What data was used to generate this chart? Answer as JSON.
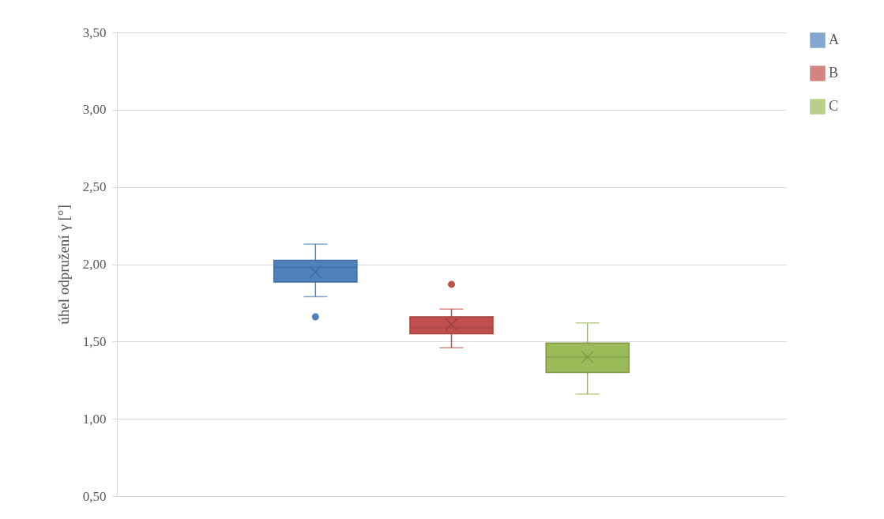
{
  "chart_data": {
    "type": "box",
    "ylabel": "úhel odpružení γ [°]",
    "categories": [
      null
    ],
    "series": [
      {
        "name": "A",
        "color": "#4f81bd",
        "boxes": [
          {
            "low": 1.79,
            "q1": 1.885,
            "median": 1.98,
            "q3": 2.025,
            "high": 2.13,
            "mean": 1.95,
            "outliers": [
              1.66
            ]
          }
        ]
      },
      {
        "name": "B",
        "color": "#c0504d",
        "boxes": [
          {
            "low": 1.46,
            "q1": 1.55,
            "median": 1.59,
            "q3": 1.66,
            "high": 1.71,
            "mean": 1.61,
            "outliers": [
              1.87
            ]
          }
        ]
      },
      {
        "name": "C",
        "color": "#9bbb59",
        "boxes": [
          {
            "low": 1.16,
            "q1": 1.3,
            "median": 1.4,
            "q3": 1.49,
            "high": 1.62,
            "mean": 1.4
          }
        ]
      }
    ],
    "ylim": [
      0.5,
      3.5
    ],
    "yticks": [
      {
        "value": 0.5,
        "label": "0,50"
      },
      {
        "value": 1,
        "label": "1,00"
      },
      {
        "value": 1.5,
        "label": "1,50"
      },
      {
        "value": 2,
        "label": "2,00"
      },
      {
        "value": 2.5,
        "label": "2,50"
      },
      {
        "value": 3,
        "label": "3,00"
      },
      {
        "value": 3.5,
        "label": "3,50"
      }
    ],
    "grid": "y",
    "legend": "right",
    "tick_labels": "y"
  }
}
